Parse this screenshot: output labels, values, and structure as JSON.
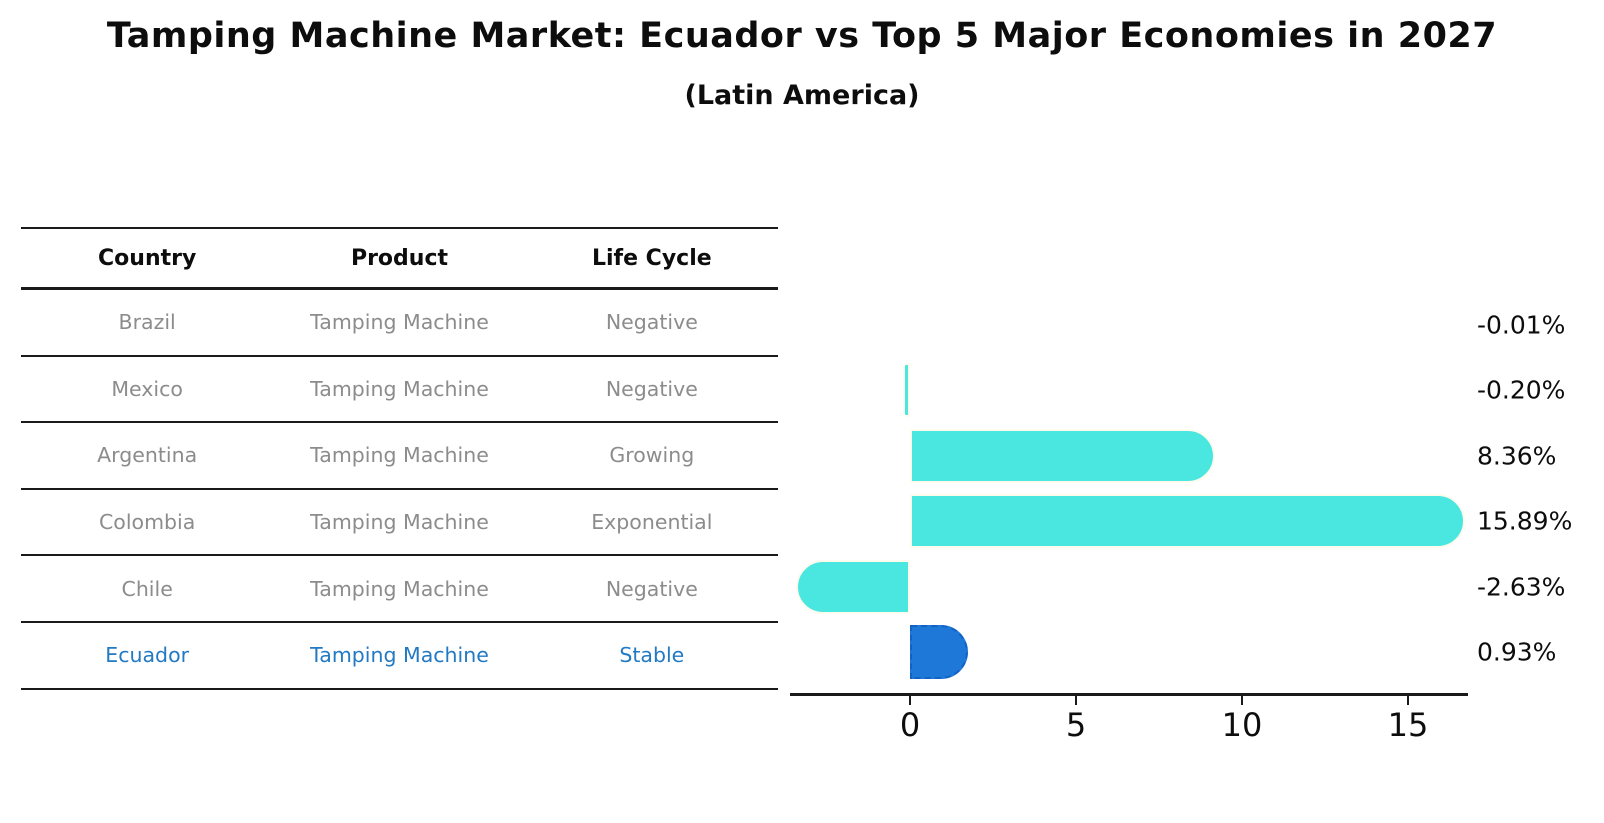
{
  "title": "Tamping Machine Market: Ecuador vs Top 5 Major Economies in 2027",
  "subtitle": "(Latin America)",
  "table": {
    "headers": [
      "Country",
      "Product",
      "Life Cycle"
    ],
    "rows": [
      {
        "country": "Brazil",
        "product": "Tamping Machine",
        "life_cycle": "Negative",
        "highlight": false
      },
      {
        "country": "Mexico",
        "product": "Tamping Machine",
        "life_cycle": "Negative",
        "highlight": false
      },
      {
        "country": "Argentina",
        "product": "Tamping Machine",
        "life_cycle": "Growing",
        "highlight": false
      },
      {
        "country": "Colombia",
        "product": "Tamping Machine",
        "life_cycle": "Exponential",
        "highlight": false
      },
      {
        "country": "Chile",
        "product": "Tamping Machine",
        "life_cycle": "Negative",
        "highlight": false
      },
      {
        "country": "Ecuador",
        "product": "Tamping Machine",
        "life_cycle": "Stable",
        "highlight": true
      }
    ]
  },
  "chart_data": {
    "type": "bar",
    "orientation": "horizontal",
    "categories": [
      "Brazil",
      "Mexico",
      "Argentina",
      "Colombia",
      "Chile",
      "Ecuador"
    ],
    "values": [
      -0.01,
      -0.2,
      8.36,
      15.89,
      -2.63,
      0.93
    ],
    "value_labels": [
      "-0.01%",
      "-0.20%",
      "8.36%",
      "15.89%",
      "-2.63%",
      "0.93%"
    ],
    "x_ticks": [
      "0",
      "5",
      "10",
      "15"
    ],
    "x_tick_values": [
      0,
      5,
      10,
      15
    ],
    "xlim": [
      -3.6,
      16.8
    ],
    "grid": false,
    "legend": false,
    "highlight_index": 5,
    "bar_color": "#4ae6e0",
    "highlight_bar_color": "#1e78d8",
    "highlight_border_color": "#1261c4",
    "axis_color": "#1a1a1a",
    "label_color": "#0d0d0d"
  },
  "colors": {
    "background": "#ffffff",
    "table_text": "#8c8c8c",
    "highlight_text": "#2279c4",
    "heading_text": "#0d0d0d"
  }
}
